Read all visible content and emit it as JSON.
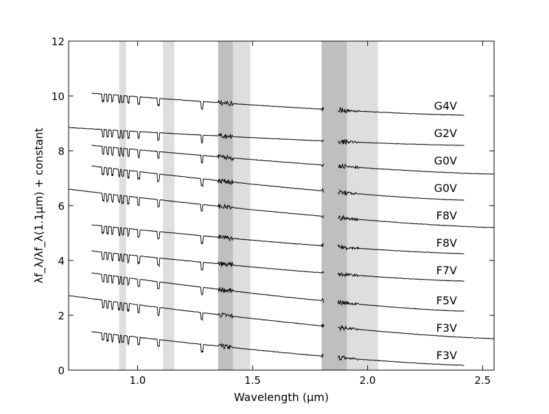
{
  "chart_data": {
    "type": "line",
    "title": "",
    "xlabel": "Wavelength (μm)",
    "ylabel": "λf_λ/λf_λ(1.1μm) + constant",
    "xlim": [
      0.7,
      2.55
    ],
    "ylim": [
      0,
      12
    ],
    "xticks": [
      {
        "v": 1.0,
        "label": "1.0"
      },
      {
        "v": 1.5,
        "label": "1.5"
      },
      {
        "v": 2.0,
        "label": "2.0"
      },
      {
        "v": 2.5,
        "label": "2.5"
      }
    ],
    "yticks": [
      {
        "v": 0,
        "label": "0"
      },
      {
        "v": 2,
        "label": "2"
      },
      {
        "v": 4,
        "label": "4"
      },
      {
        "v": 6,
        "label": "6"
      },
      {
        "v": 8,
        "label": "8"
      },
      {
        "v": 10,
        "label": "10"
      },
      {
        "v": 12,
        "label": "12"
      }
    ],
    "bands": [
      {
        "x0": 0.92,
        "x1": 0.95,
        "shade": "light"
      },
      {
        "x0": 1.11,
        "x1": 1.16,
        "shade": "light"
      },
      {
        "x0": 1.35,
        "x1": 1.415,
        "shade": "dark"
      },
      {
        "x0": 1.415,
        "x1": 1.49,
        "shade": "light"
      },
      {
        "x0": 1.8,
        "x1": 1.91,
        "shade": "dark"
      },
      {
        "x0": 1.91,
        "x1": 2.045,
        "shade": "light"
      }
    ],
    "band_colors": {
      "light": "#dedede",
      "dark": "#bfbfbf"
    },
    "series": [
      {
        "name": "F3V",
        "x0": 0.8,
        "x1": 2.42,
        "y_start": 1.4,
        "y_end": 0.18,
        "label_y": 0.55
      },
      {
        "name": "F3V",
        "x0": 0.7,
        "x1": 2.55,
        "y_start": 2.72,
        "y_end": 1.15,
        "label_y": 1.55
      },
      {
        "name": "F5V",
        "x0": 0.8,
        "x1": 2.42,
        "y_start": 3.55,
        "y_end": 2.15,
        "label_y": 2.55
      },
      {
        "name": "F7V",
        "x0": 0.8,
        "x1": 2.42,
        "y_start": 4.35,
        "y_end": 3.25,
        "label_y": 3.65
      },
      {
        "name": "F8V",
        "x0": 0.8,
        "x1": 2.42,
        "y_start": 5.3,
        "y_end": 4.25,
        "label_y": 4.65
      },
      {
        "name": "F8V",
        "x0": 0.7,
        "x1": 2.55,
        "y_start": 6.6,
        "y_end": 5.2,
        "label_y": 5.65
      },
      {
        "name": "G0V",
        "x0": 0.8,
        "x1": 2.42,
        "y_start": 7.45,
        "y_end": 6.2,
        "label_y": 6.65
      },
      {
        "name": "G0V",
        "x0": 0.8,
        "x1": 2.55,
        "y_start": 8.2,
        "y_end": 7.15,
        "label_y": 7.65
      },
      {
        "name": "G2V",
        "x0": 0.7,
        "x1": 2.42,
        "y_start": 8.85,
        "y_end": 8.2,
        "label_y": 8.65
      },
      {
        "name": "G4V",
        "x0": 0.8,
        "x1": 2.42,
        "y_start": 10.1,
        "y_end": 9.3,
        "label_y": 9.65
      }
    ]
  }
}
